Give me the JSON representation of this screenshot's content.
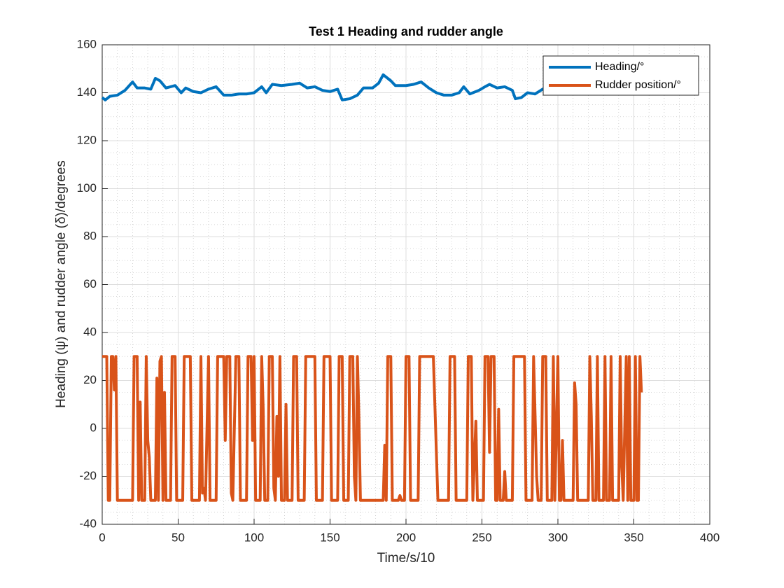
{
  "chart_data": {
    "type": "line",
    "title": "Test 1 Heading and rudder angle",
    "x_label": "Time/s/10",
    "y_label": "Heading (ψ) and rudder angle (δ)/degrees",
    "xlim": [
      0,
      400
    ],
    "xticks": [
      0,
      50,
      100,
      150,
      200,
      250,
      300,
      350,
      400
    ],
    "ylim": [
      -40,
      160
    ],
    "yticks": [
      -40,
      -20,
      0,
      20,
      40,
      60,
      80,
      100,
      120,
      140,
      160
    ],
    "grid": true,
    "minor_grid": true,
    "legend": "upper right",
    "series": [
      {
        "name": "Heading/°",
        "color": "#0072bd",
        "x": [
          0,
          2,
          5,
          10,
          15,
          20,
          23,
          28,
          32,
          35,
          38,
          42,
          48,
          52,
          55,
          60,
          65,
          70,
          75,
          80,
          85,
          90,
          95,
          100,
          105,
          108,
          112,
          118,
          125,
          130,
          135,
          140,
          145,
          150,
          155,
          158,
          163,
          168,
          172,
          178,
          182,
          185,
          190,
          193,
          200,
          205,
          210,
          215,
          220,
          225,
          230,
          235,
          238,
          242,
          248,
          252,
          255,
          260,
          265,
          270,
          272,
          276,
          280,
          285,
          290,
          295,
          300,
          305,
          310,
          315,
          320,
          325,
          330,
          335,
          340,
          345,
          350,
          355,
          358
        ],
        "values": [
          138,
          137,
          138.5,
          139,
          141,
          144.5,
          142,
          142,
          141.5,
          146,
          145,
          142,
          143,
          140,
          142,
          140.5,
          140,
          141.5,
          142.5,
          139,
          139,
          139.5,
          139.5,
          140,
          142.5,
          140,
          143.5,
          143,
          143.5,
          144,
          142,
          142.5,
          141,
          140.5,
          141.5,
          137,
          137.5,
          139,
          142,
          142,
          144,
          147.5,
          145,
          143,
          143,
          143.5,
          144.5,
          142,
          140,
          139,
          139,
          140,
          142.5,
          139.5,
          141,
          142.5,
          143.5,
          142,
          142.5,
          141,
          137.5,
          138,
          140,
          139.5,
          141.5,
          142.5,
          142,
          141,
          142.5,
          143,
          143.5,
          142,
          141,
          142,
          142.5,
          141.5,
          142,
          141,
          141.5
        ]
      },
      {
        "name": "Rudder position/°",
        "color": "#d95319",
        "x": [
          0,
          3,
          4,
          5,
          6,
          7,
          8,
          9,
          10,
          20,
          21,
          23,
          24,
          25,
          26,
          28,
          29,
          30,
          31,
          32,
          35,
          36,
          37,
          38,
          39,
          40,
          41,
          42,
          45,
          46,
          48,
          49,
          53,
          54,
          58,
          59,
          64,
          65,
          66,
          67,
          68,
          70,
          71,
          75,
          76,
          80,
          81,
          82,
          84,
          85,
          86,
          88,
          90,
          91,
          95,
          96,
          98,
          99,
          100,
          101,
          104,
          105,
          106,
          107,
          109,
          110,
          112,
          113,
          114,
          115,
          116,
          117,
          118,
          120,
          121,
          122,
          125,
          126,
          128,
          129,
          133,
          134,
          140,
          141,
          145,
          146,
          150,
          151,
          155,
          156,
          158,
          159,
          162,
          163,
          165,
          166,
          167,
          168,
          169,
          170,
          185,
          186,
          187,
          188,
          190,
          191,
          195,
          196,
          197,
          199,
          200,
          202,
          203,
          208,
          209,
          218,
          221,
          228,
          229,
          232,
          233,
          240,
          241,
          243,
          244,
          246,
          247,
          251,
          252,
          254,
          255,
          256,
          258,
          259,
          260,
          261,
          262,
          264,
          265,
          266,
          270,
          271,
          278,
          279,
          283,
          284,
          286,
          287,
          289,
          290,
          292,
          293,
          296,
          297,
          298,
          300,
          301,
          302,
          303,
          304,
          310,
          311,
          312,
          313,
          320,
          321,
          322,
          323,
          325,
          326,
          327,
          330,
          331,
          332,
          334,
          335,
          336,
          340,
          341,
          342,
          343,
          345,
          346,
          347,
          348,
          350,
          351,
          352,
          353,
          354,
          355
        ],
        "values": [
          30,
          30,
          -30,
          -30,
          30,
          30,
          16,
          30,
          -30,
          -30,
          30,
          30,
          -30,
          11,
          -30,
          -30,
          30,
          -5,
          -12,
          -30,
          -30,
          21,
          -30,
          28,
          30,
          -30,
          15,
          -30,
          -30,
          30,
          30,
          -30,
          -30,
          30,
          30,
          -30,
          -30,
          30,
          -27,
          -25,
          -30,
          30,
          -30,
          -30,
          30,
          30,
          -5,
          30,
          30,
          -27,
          -30,
          30,
          30,
          -30,
          -30,
          30,
          30,
          -5,
          30,
          -30,
          -30,
          30,
          8,
          -30,
          -30,
          30,
          30,
          -25,
          -30,
          5,
          -20,
          30,
          -30,
          -30,
          10,
          -30,
          -30,
          30,
          30,
          -30,
          -30,
          30,
          30,
          -30,
          -30,
          30,
          30,
          -30,
          -30,
          30,
          30,
          -30,
          -30,
          30,
          30,
          -20,
          -30,
          30,
          5,
          -30,
          -30,
          -7,
          -30,
          30,
          30,
          -30,
          -30,
          -28,
          -30,
          -30,
          30,
          30,
          -30,
          -30,
          30,
          30,
          -30,
          -30,
          30,
          30,
          -30,
          -30,
          30,
          30,
          -30,
          3,
          -30,
          -30,
          30,
          30,
          -10,
          30,
          30,
          -30,
          -30,
          8,
          -30,
          -30,
          -18,
          -30,
          -30,
          30,
          30,
          -30,
          -30,
          30,
          -20,
          -30,
          -30,
          30,
          30,
          -30,
          -30,
          30,
          -30,
          30,
          -30,
          -30,
          -5,
          -30,
          -30,
          19,
          10,
          -30,
          -30,
          30,
          5,
          -30,
          -30,
          30,
          -30,
          -30,
          30,
          -30,
          -30,
          30,
          -30,
          -30,
          30,
          -15,
          -30,
          30,
          -30,
          30,
          -30,
          -30,
          30,
          -30,
          -30,
          30,
          15
        ]
      }
    ]
  }
}
